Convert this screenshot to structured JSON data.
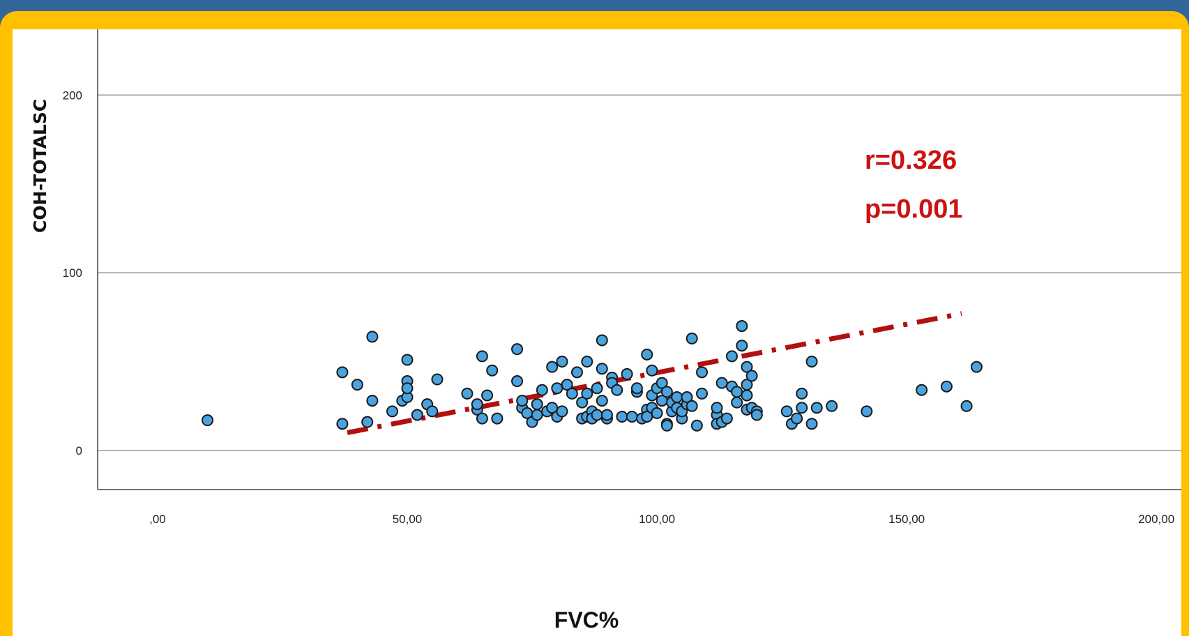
{
  "chart_data": {
    "type": "scatter",
    "xlabel": "FVC%",
    "ylabel": "COH-TOTALSC",
    "xlim": [
      -12,
      205
    ],
    "ylim": [
      -22,
      237
    ],
    "x_ticks": [
      {
        "value": 0,
        "label": ",00"
      },
      {
        "value": 50,
        "label": "50,00"
      },
      {
        "value": 100,
        "label": "100,00"
      },
      {
        "value": 150,
        "label": "150,00"
      },
      {
        "value": 200,
        "label": "200,00"
      }
    ],
    "y_ticks": [
      {
        "value": 0,
        "label": "0"
      },
      {
        "value": 100,
        "label": "100"
      },
      {
        "value": 200,
        "label": "200"
      }
    ],
    "grid": "horizontal",
    "annotations": {
      "r": "r=0.326",
      "p": "p=0.001"
    },
    "trend_line": {
      "x": [
        38,
        161
      ],
      "y": [
        10,
        77
      ],
      "color": "#b01010",
      "style": "dash-dot"
    },
    "point_color": "#4aa3df",
    "points": [
      [
        10,
        17
      ],
      [
        37,
        44
      ],
      [
        37,
        15
      ],
      [
        40,
        37
      ],
      [
        42,
        16
      ],
      [
        43,
        64
      ],
      [
        43,
        28
      ],
      [
        47,
        22
      ],
      [
        49,
        28
      ],
      [
        50,
        51
      ],
      [
        50,
        30
      ],
      [
        50,
        39
      ],
      [
        50,
        35
      ],
      [
        52,
        20
      ],
      [
        54,
        26
      ],
      [
        55,
        22
      ],
      [
        56,
        40
      ],
      [
        62,
        32
      ],
      [
        64,
        23
      ],
      [
        64,
        26
      ],
      [
        65,
        18
      ],
      [
        65,
        53
      ],
      [
        66,
        31
      ],
      [
        67,
        45
      ],
      [
        68,
        18
      ],
      [
        72,
        57
      ],
      [
        72,
        39
      ],
      [
        73,
        24
      ],
      [
        73,
        28
      ],
      [
        74,
        21
      ],
      [
        75,
        16
      ],
      [
        76,
        26
      ],
      [
        76,
        20
      ],
      [
        77,
        34
      ],
      [
        78,
        22
      ],
      [
        79,
        47
      ],
      [
        79,
        24
      ],
      [
        80,
        19
      ],
      [
        80,
        35
      ],
      [
        81,
        50
      ],
      [
        81,
        22
      ],
      [
        82,
        37
      ],
      [
        83,
        32
      ],
      [
        84,
        44
      ],
      [
        85,
        18
      ],
      [
        85,
        27
      ],
      [
        86,
        32
      ],
      [
        86,
        19
      ],
      [
        86,
        50
      ],
      [
        87,
        22
      ],
      [
        87,
        18
      ],
      [
        88,
        35
      ],
      [
        88,
        20
      ],
      [
        89,
        62
      ],
      [
        89,
        28
      ],
      [
        89,
        46
      ],
      [
        90,
        18
      ],
      [
        90,
        20
      ],
      [
        91,
        41
      ],
      [
        91,
        38
      ],
      [
        92,
        34
      ],
      [
        93,
        19
      ],
      [
        94,
        43
      ],
      [
        95,
        19
      ],
      [
        96,
        33
      ],
      [
        96,
        35
      ],
      [
        97,
        18
      ],
      [
        98,
        54
      ],
      [
        98,
        23
      ],
      [
        98,
        19
      ],
      [
        99,
        45
      ],
      [
        99,
        31
      ],
      [
        99,
        24
      ],
      [
        100,
        35
      ],
      [
        100,
        21
      ],
      [
        101,
        28
      ],
      [
        101,
        38
      ],
      [
        102,
        33
      ],
      [
        102,
        15
      ],
      [
        102,
        14
      ],
      [
        103,
        22
      ],
      [
        103,
        27
      ],
      [
        104,
        24
      ],
      [
        104,
        30
      ],
      [
        105,
        18
      ],
      [
        105,
        22
      ],
      [
        106,
        26
      ],
      [
        106,
        30
      ],
      [
        107,
        25
      ],
      [
        107,
        63
      ],
      [
        108,
        14
      ],
      [
        109,
        32
      ],
      [
        109,
        44
      ],
      [
        112,
        20
      ],
      [
        112,
        24
      ],
      [
        112,
        15
      ],
      [
        113,
        16
      ],
      [
        113,
        38
      ],
      [
        114,
        18
      ],
      [
        115,
        36
      ],
      [
        115,
        53
      ],
      [
        116,
        27
      ],
      [
        116,
        33
      ],
      [
        117,
        70
      ],
      [
        117,
        59
      ],
      [
        118,
        31
      ],
      [
        118,
        23
      ],
      [
        118,
        37
      ],
      [
        118,
        47
      ],
      [
        119,
        24
      ],
      [
        119,
        42
      ],
      [
        120,
        22
      ],
      [
        120,
        20
      ],
      [
        126,
        22
      ],
      [
        127,
        15
      ],
      [
        128,
        18
      ],
      [
        129,
        32
      ],
      [
        129,
        24
      ],
      [
        131,
        15
      ],
      [
        131,
        50
      ],
      [
        132,
        24
      ],
      [
        135,
        25
      ],
      [
        142,
        22
      ],
      [
        153,
        34
      ],
      [
        158,
        36
      ],
      [
        162,
        25
      ],
      [
        164,
        47
      ]
    ]
  }
}
